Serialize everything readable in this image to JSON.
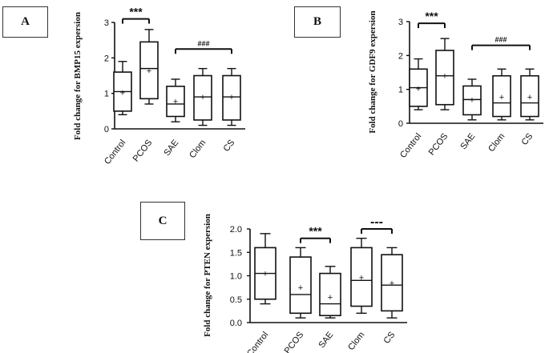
{
  "chart_data": [
    {
      "panel": "A",
      "type": "box",
      "ylabel": "Fold change for BMP15 expersion",
      "ylim": [
        0,
        3
      ],
      "yticks": [
        0,
        1,
        2,
        3
      ],
      "categories": [
        "Control",
        "PCOS",
        "SAE",
        "Clom",
        "CS"
      ],
      "boxes": [
        {
          "min": 0.4,
          "q1": 0.5,
          "median": 1.05,
          "q3": 1.6,
          "max": 1.9,
          "mean": 1.03
        },
        {
          "min": 0.7,
          "q1": 0.85,
          "median": 1.7,
          "q3": 2.45,
          "max": 2.8,
          "mean": 1.65
        },
        {
          "min": 0.2,
          "q1": 0.35,
          "median": 0.7,
          "q3": 1.2,
          "max": 1.4,
          "mean": 0.78
        },
        {
          "min": 0.1,
          "q1": 0.25,
          "median": 0.9,
          "q3": 1.5,
          "max": 1.7,
          "mean": 0.9
        },
        {
          "min": 0.1,
          "q1": 0.25,
          "median": 0.9,
          "q3": 1.5,
          "max": 1.7,
          "mean": 0.9
        }
      ],
      "annotations": [
        {
          "text": "***",
          "from": 0,
          "to": 1,
          "y": 3.1
        },
        {
          "text": "###",
          "from": 2,
          "to": 4,
          "y": 2.25
        }
      ]
    },
    {
      "panel": "B",
      "type": "box",
      "ylabel": "Fold change for GDF9 expersion",
      "ylim": [
        0,
        3
      ],
      "yticks": [
        0,
        1,
        2,
        3
      ],
      "categories": [
        "Control",
        "PCOS",
        "SAE",
        "Clom",
        "CS"
      ],
      "boxes": [
        {
          "min": 0.4,
          "q1": 0.5,
          "median": 1.05,
          "q3": 1.6,
          "max": 1.9,
          "mean": 1.03
        },
        {
          "min": 0.4,
          "q1": 0.55,
          "median": 1.4,
          "q3": 2.15,
          "max": 2.5,
          "mean": 1.4
        },
        {
          "min": 0.1,
          "q1": 0.25,
          "median": 0.7,
          "q3": 1.1,
          "max": 1.3,
          "mean": 0.7
        },
        {
          "min": 0.1,
          "q1": 0.2,
          "median": 0.6,
          "q3": 1.4,
          "max": 1.6,
          "mean": 0.78
        },
        {
          "min": 0.1,
          "q1": 0.2,
          "median": 0.6,
          "q3": 1.4,
          "max": 1.6,
          "mean": 0.78
        }
      ],
      "annotations": [
        {
          "text": "***",
          "from": 0,
          "to": 1,
          "y": 2.95
        },
        {
          "text": "###",
          "from": 2,
          "to": 4,
          "y": 2.3
        }
      ]
    },
    {
      "panel": "C",
      "type": "box",
      "ylabel": "Fold change for PTEN expersion",
      "ylim": [
        0,
        2
      ],
      "yticks": [
        "0.0",
        "0.5",
        "1.0",
        "1.5",
        "2.0"
      ],
      "categories": [
        "Control",
        "PCOS",
        "SAE",
        "Clom",
        "CS"
      ],
      "boxes": [
        {
          "min": 0.4,
          "q1": 0.5,
          "median": 1.05,
          "q3": 1.6,
          "max": 1.9,
          "mean": 1.05
        },
        {
          "min": 0.1,
          "q1": 0.2,
          "median": 0.6,
          "q3": 1.4,
          "max": 1.6,
          "mean": 0.75
        },
        {
          "min": 0.1,
          "q1": 0.15,
          "median": 0.4,
          "q3": 1.05,
          "max": 1.2,
          "mean": 0.55
        },
        {
          "min": 0.2,
          "q1": 0.35,
          "median": 0.9,
          "q3": 1.6,
          "max": 1.8,
          "mean": 0.97
        },
        {
          "min": 0.1,
          "q1": 0.25,
          "median": 0.8,
          "q3": 1.45,
          "max": 1.6,
          "mean": 0.85
        }
      ],
      "annotations": [
        {
          "text": "***",
          "from": 1,
          "to": 2,
          "y": 1.8
        },
        {
          "text": "---",
          "from": 3,
          "to": 4,
          "y": 2.0
        }
      ]
    }
  ]
}
